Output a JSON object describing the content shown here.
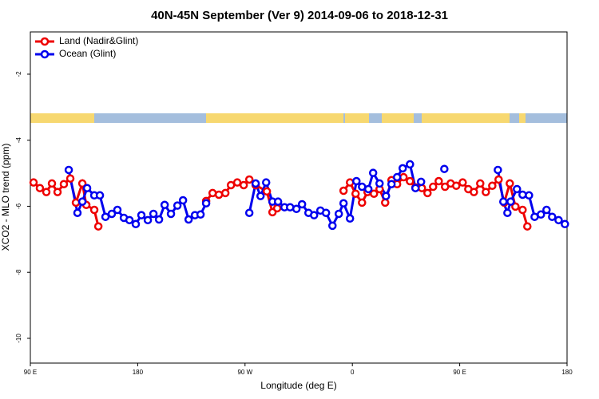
{
  "chart_data": {
    "type": "line",
    "title": "40N-45N September (Ver 9)   2014-09-06 to 2018-12-31",
    "x_label": "Longitude (deg E)",
    "y_label": "XCO2 - MLO trend (ppm)",
    "xlim": [
      90,
      540
    ],
    "xticks": [
      {
        "value": 90,
        "label": "90 E"
      },
      180,
      {
        "value": 270,
        "label": "90 W"
      },
      {
        "value": 360,
        "label": "0"
      },
      {
        "value": 450,
        "label": "90 E"
      },
      {
        "value": 540,
        "label": "180"
      }
    ],
    "ylim": [
      -10.75,
      -0.72
    ],
    "yticks": [
      -2,
      -4,
      -6,
      -8,
      -10
    ],
    "legend": "top-left",
    "series": [
      {
        "name": "Land (Nadir&Glint)",
        "color": "#ee0000",
        "x": [
          92.7,
          98,
          103.4,
          108.1,
          112.8,
          118.1,
          123.5,
          128.2,
          133.6,
          136.9,
          143.6,
          147,
          190,
          237.4,
          242.8,
          248.1,
          253.5,
          258.2,
          263.5,
          268.9,
          273.6,
          278.9,
          288.3,
          293,
          297,
          325,
          352.6,
          358,
          362.7,
          368.1,
          372.7,
          378.1,
          382.8,
          387.5,
          392.8,
          397.5,
          402.9,
          408.3,
          412.9,
          418.3,
          423,
          427.7,
          432.4,
          437.7,
          442.4,
          447.1,
          452.5,
          457.2,
          461.9,
          467.2,
          471.9,
          477.3,
          482.6,
          487.3,
          492,
          496.7,
          502.7,
          506.7
        ],
        "values": [
          -5.28,
          -5.45,
          -5.57,
          -5.31,
          -5.57,
          -5.33,
          -5.16,
          -5.89,
          -5.31,
          -5.96,
          -6.11,
          -6.61,
          null,
          -5.84,
          -5.6,
          -5.65,
          -5.6,
          -5.36,
          -5.28,
          -5.36,
          -5.19,
          -5.36,
          -5.55,
          -6.18,
          -6.06,
          null,
          -5.53,
          -5.28,
          -5.62,
          -5.89,
          -5.57,
          -5.62,
          -5.48,
          -5.89,
          -5.21,
          -5.33,
          -5.12,
          -5.24,
          -5.43,
          -5.45,
          -5.6,
          -5.41,
          -5.24,
          -5.41,
          -5.31,
          -5.38,
          -5.28,
          -5.48,
          -5.57,
          -5.31,
          -5.57,
          -5.38,
          -5.19,
          -5.89,
          -5.31,
          -6.01,
          -6.11,
          -6.61
        ]
      },
      {
        "name": "Ocean (Glint)",
        "color": "#0000ee",
        "x": [
          122.2,
          129.5,
          133.6,
          137.6,
          143.6,
          148.3,
          153,
          158.3,
          163,
          168.4,
          173.1,
          178.4,
          183.1,
          188.5,
          193.2,
          197.9,
          202.6,
          207.9,
          213.3,
          218,
          222.7,
          228,
          232.7,
          237.4,
          255,
          273.6,
          278.9,
          283,
          287.7,
          293,
          297.7,
          303.1,
          307.8,
          313.1,
          317.8,
          323.2,
          327.9,
          333.2,
          337.9,
          343.3,
          348.6,
          352.6,
          358,
          363.4,
          368.1,
          373.4,
          377.4,
          382.8,
          388.2,
          392.8,
          397.5,
          402.2,
          408.3,
          412.9,
          417.6,
          427,
          437.1,
          460,
          482,
          486.6,
          490,
          492.7,
          498,
          502.7,
          508.1,
          512.8,
          518.1,
          522.8,
          527.5,
          532.9,
          538.2
        ],
        "values": [
          -4.9,
          -6.2,
          -5.86,
          -5.45,
          -5.67,
          -5.67,
          -6.32,
          -6.23,
          -6.11,
          -6.35,
          -6.42,
          -6.54,
          -6.27,
          -6.42,
          -6.23,
          -6.4,
          -5.96,
          -6.23,
          -5.98,
          -5.82,
          -6.4,
          -6.27,
          -6.25,
          -5.91,
          null,
          -6.2,
          -5.31,
          -5.69,
          -5.28,
          -5.86,
          -5.86,
          -6.03,
          -6.03,
          -6.08,
          -5.94,
          -6.2,
          -6.27,
          -6.13,
          -6.2,
          -6.59,
          -6.23,
          -5.91,
          -6.37,
          -5.24,
          -5.41,
          -5.48,
          -4.99,
          -5.31,
          -5.69,
          -5.33,
          -5.12,
          -4.85,
          -4.73,
          -5.45,
          -5.26,
          null,
          -4.87,
          null,
          -4.9,
          -5.86,
          -6.2,
          -5.86,
          -5.48,
          -5.65,
          -5.67,
          -6.32,
          -6.25,
          -6.11,
          -6.32,
          -6.42,
          -6.54
        ]
      }
    ]
  }
}
